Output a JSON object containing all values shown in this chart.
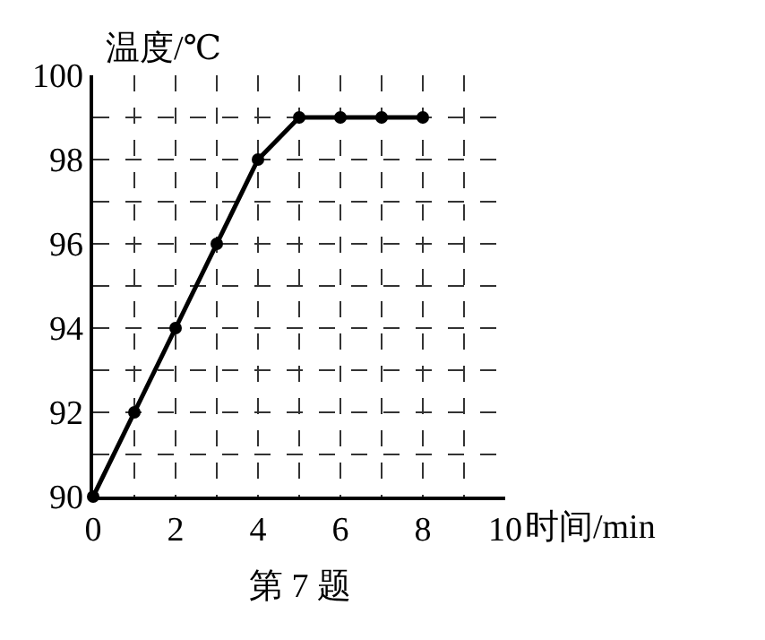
{
  "chart_data": {
    "type": "line",
    "xlabel": "时间/min",
    "ylabel": "温度/℃",
    "annotations": [
      "第 7 题"
    ],
    "x": [
      0,
      1,
      2,
      3,
      4,
      5,
      6,
      7,
      8
    ],
    "series": [
      {
        "color": "#000000",
        "values": [
          90,
          92,
          94,
          96,
          98,
          99,
          99,
          99,
          99
        ]
      }
    ],
    "xlim": [
      0,
      10
    ],
    "ylim": [
      90,
      100
    ],
    "xticks": [
      0,
      {
        "value": 1,
        "label": null
      },
      2,
      {
        "value": 3,
        "label": null
      },
      4,
      {
        "value": 5,
        "label": null
      },
      6,
      {
        "value": 7,
        "label": null
      },
      8,
      {
        "value": 9,
        "label": null
      },
      10
    ],
    "yticks": [
      90,
      {
        "value": 91,
        "label": null
      },
      92,
      {
        "value": 93,
        "label": null
      },
      94,
      {
        "value": 95,
        "label": null
      },
      96,
      {
        "value": 97,
        "label": null
      },
      98,
      {
        "value": 99,
        "label": null
      },
      100
    ],
    "grid": true,
    "marker": "circle",
    "line_style": "solid"
  }
}
